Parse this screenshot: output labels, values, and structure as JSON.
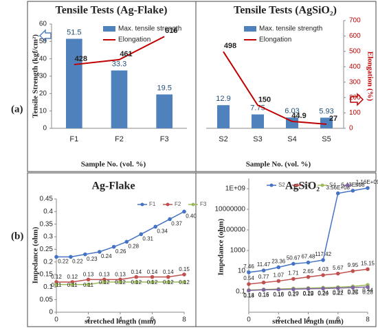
{
  "panel_labels": [
    "(a)",
    "(b)"
  ],
  "chart_data": [
    {
      "type": "combo",
      "title": "Tensile Tests (Ag-Flake)",
      "xlabel": "Sample No. (vol. %)",
      "ylabel": "Tensile Strength (kgf/cm²)",
      "categories": [
        "F1",
        "F2",
        "F3"
      ],
      "series": [
        {
          "name": "Max. tensile strength",
          "type": "bar",
          "color": "#4f81bd",
          "values": [
            51.5,
            33.3,
            19.5
          ]
        },
        {
          "name": "Elongation",
          "type": "line",
          "axis": "y2",
          "color": "#c00000",
          "values": [
            428,
            461,
            616
          ]
        }
      ],
      "ylim": [
        0,
        60
      ],
      "yticks": [
        0,
        10,
        20,
        30,
        40,
        50,
        60
      ],
      "y2lim": [
        0,
        700
      ]
    },
    {
      "type": "combo",
      "title": "Tensile Tests (AgSiO₂)",
      "xlabel": "Sample No. (vol. %)",
      "y2label": "Elongation (%)",
      "categories": [
        "S2",
        "S3",
        "S4",
        "S5"
      ],
      "series": [
        {
          "name": "Max. tensile strength",
          "type": "bar",
          "color": "#4f81bd",
          "values": [
            12.9,
            7.75,
            6.03,
            5.93
          ]
        },
        {
          "name": "Elongation",
          "type": "line",
          "axis": "y2",
          "color": "#c00000",
          "values": [
            498,
            150,
            44.9,
            27
          ]
        }
      ],
      "ylim": [
        0,
        60
      ],
      "y2lim": [
        0,
        700
      ],
      "y2ticks": [
        0,
        100,
        200,
        300,
        400,
        500,
        600,
        700
      ]
    },
    {
      "type": "line",
      "title": "Ag-Flake",
      "xlabel": "stretched length (mm)",
      "ylabel": "Impedance (ohm)",
      "xlim": [
        0,
        8
      ],
      "xticks": [
        0,
        2,
        4,
        6,
        8
      ],
      "ylim": [
        0,
        0.45
      ],
      "yticks": [
        0,
        0.05,
        0.1,
        0.15,
        0.2,
        0.25,
        0.3,
        0.35,
        0.4,
        0.45
      ],
      "series": [
        {
          "name": "F1",
          "color": "#4472c4",
          "x": [
            0,
            0.9,
            1.8,
            2.7,
            3.6,
            4.4,
            5.3,
            6.2,
            7.1,
            8
          ],
          "values": [
            0.22,
            0.22,
            0.23,
            0.24,
            0.26,
            0.28,
            0.31,
            0.34,
            0.37,
            0.4
          ],
          "value_labels": [
            "0.22",
            "0.22",
            "0.23",
            "0.24",
            "0.26",
            "0.28",
            "0.31",
            "0.34",
            "0.37",
            "0.40"
          ]
        },
        {
          "name": "F2",
          "color": "#c0504d",
          "x": [
            0,
            1,
            2,
            3,
            4,
            5,
            6,
            7,
            8
          ],
          "values": [
            0.12,
            0.12,
            0.13,
            0.13,
            0.13,
            0.14,
            0.14,
            0.14,
            0.15
          ],
          "value_labels": [
            "0.12",
            "0.12",
            "0.13",
            "0.13",
            "0.13",
            "0.14",
            "0.14",
            "0.14",
            "0.15"
          ]
        },
        {
          "name": "F3",
          "color": "#9bbb59",
          "x": [
            0,
            1,
            2,
            3,
            4,
            5,
            6,
            7,
            8
          ],
          "values": [
            0.11,
            0.11,
            0.11,
            0.12,
            0.12,
            0.12,
            0.12,
            0.12,
            0.12
          ],
          "value_labels": [
            "0.11",
            "0.11",
            "0.11",
            "0.12",
            "0.12",
            "0.12",
            "0.12",
            "0.12",
            "0.12"
          ]
        }
      ]
    },
    {
      "type": "line",
      "title": "AgSiO₂",
      "xlabel": "stretched length (mm)",
      "ylabel": "Impedance (ohm)",
      "log_y": true,
      "x": [
        0,
        1,
        2,
        3,
        4,
        5,
        6,
        7,
        8
      ],
      "xlim": [
        0,
        8
      ],
      "xticks": [
        0,
        2,
        4,
        6,
        8
      ],
      "ylim": [
        0.001,
        10000000000
      ],
      "yticks": [
        0.1,
        10,
        1000,
        100000,
        10000000,
        {
          "value": 1000000000,
          "label": "1E+09"
        }
      ],
      "series": [
        {
          "name": "S2",
          "color": "#4472c4",
          "values": [
            7.46,
            11.47,
            23.36,
            50.67,
            67.48,
            117.42,
            356000000,
            643000000,
            1160000000
          ],
          "value_labels": [
            "7.46",
            "11.47",
            "23.36",
            "50.67",
            "67.48",
            "117.42",
            "3.56E+08",
            "6.43E+08",
            "1.16E+09"
          ]
        },
        {
          "name": "S3",
          "color": "#c0504d",
          "values": [
            0.54,
            0.77,
            1.07,
            1.71,
            2.65,
            4.03,
            5.67,
            9.95,
            15.15
          ],
          "value_labels": [
            "0.54",
            "0.77",
            "1.07",
            "1.71",
            "2.65",
            "4.03",
            "5.67",
            "9.95",
            "15.15"
          ]
        },
        {
          "name": "S4",
          "color": "#9bbb59",
          "values": [
            0.14,
            0.16,
            0.18,
            0.2,
            0.22,
            0.24,
            0.27,
            0.32,
            0.44
          ],
          "value_labels": [
            "0.14",
            "0.16",
            "0.18",
            "0.20",
            "0.22",
            "0.24",
            "0.27",
            "0.32",
            "0.44"
          ]
        },
        {
          "name": "S5",
          "color": "#8064a2",
          "values": [
            0.13,
            0.15,
            0.16,
            0.17,
            0.19,
            0.2,
            0.22,
            0.25,
            0.28
          ],
          "value_labels": [
            "0.13",
            "0.15",
            "0.16",
            "0.17",
            "0.19",
            "0.20",
            "0.22",
            "0.25",
            "0.28"
          ]
        }
      ]
    }
  ]
}
